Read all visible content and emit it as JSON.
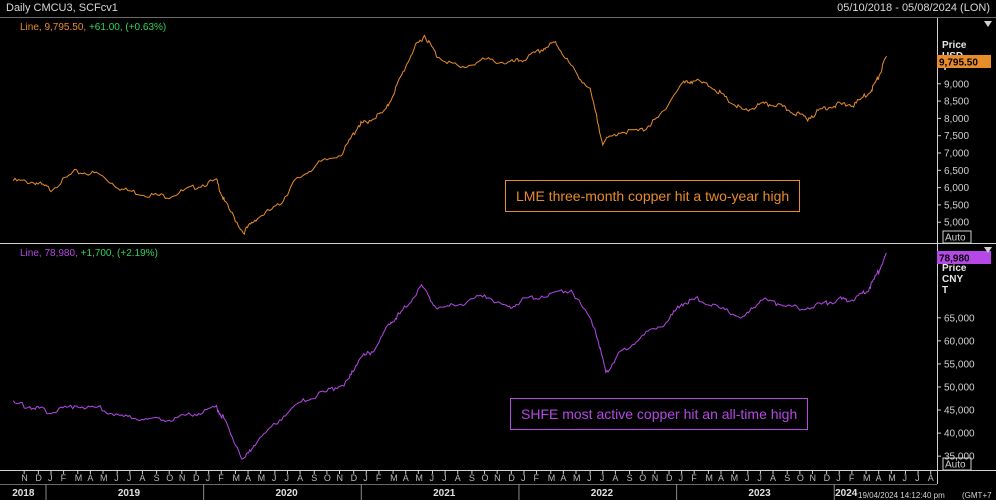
{
  "header": {
    "title": "Daily CMCU3, SCFcv1",
    "date_range": "05/10/2018 - 05/08/2024 (LON)",
    "timestamp": "19/04/2024 14:12:40 pm",
    "timezone": "(GMT+7"
  },
  "colors": {
    "lme": "#e88b2a",
    "shfe": "#b548e6",
    "change": "#2fd35a",
    "bg": "#000000"
  },
  "chart_data": [
    {
      "type": "line",
      "name": "LME",
      "legend": {
        "label": "Line,",
        "last": "9,795.50,",
        "change": "+61.00, (+0.63%)"
      },
      "annotation": "LME three-month copper hit a two-year high",
      "axis_title": [
        "Price",
        "USD",
        "T"
      ],
      "ylim": [
        4400,
        10900
      ],
      "yticks": [
        5000,
        5500,
        6000,
        6500,
        7000,
        7500,
        8000,
        8500,
        9000
      ],
      "ytick_labels": [
        "5,000",
        "5,500",
        "6,000",
        "6,500",
        "7,000",
        "7,500",
        "8,000",
        "8,500",
        "9,000"
      ],
      "last_value_label": "9,795.50",
      "auto_label": "Auto",
      "points": [
        [
          2018.76,
          6200
        ],
        [
          2018.9,
          6150
        ],
        [
          2019.0,
          5950
        ],
        [
          2019.15,
          6450
        ],
        [
          2019.3,
          6400
        ],
        [
          2019.45,
          5950
        ],
        [
          2019.6,
          5800
        ],
        [
          2019.75,
          5750
        ],
        [
          2019.9,
          6000
        ],
        [
          2020.05,
          6200
        ],
        [
          2020.1,
          5600
        ],
        [
          2020.22,
          4700
        ],
        [
          2020.3,
          5100
        ],
        [
          2020.45,
          5500
        ],
        [
          2020.55,
          6200
        ],
        [
          2020.7,
          6700
        ],
        [
          2020.85,
          7000
        ],
        [
          2020.95,
          7800
        ],
        [
          2021.0,
          7900
        ],
        [
          2021.12,
          8200
        ],
        [
          2021.2,
          9000
        ],
        [
          2021.3,
          10000
        ],
        [
          2021.37,
          10400
        ],
        [
          2021.45,
          9800
        ],
        [
          2021.6,
          9450
        ],
        [
          2021.75,
          9700
        ],
        [
          2021.9,
          9600
        ],
        [
          2022.0,
          9700
        ],
        [
          2022.12,
          10000
        ],
        [
          2022.2,
          10200
        ],
        [
          2022.3,
          9500
        ],
        [
          2022.42,
          8800
        ],
        [
          2022.5,
          7300
        ],
        [
          2022.6,
          7600
        ],
        [
          2022.75,
          7650
        ],
        [
          2022.85,
          8000
        ],
        [
          2023.0,
          9000
        ],
        [
          2023.08,
          9100
        ],
        [
          2023.2,
          8900
        ],
        [
          2023.3,
          8500
        ],
        [
          2023.4,
          8200
        ],
        [
          2023.5,
          8400
        ],
        [
          2023.6,
          8400
        ],
        [
          2023.7,
          8200
        ],
        [
          2023.8,
          8000
        ],
        [
          2023.9,
          8300
        ],
        [
          2024.0,
          8400
        ],
        [
          2024.1,
          8400
        ],
        [
          2024.2,
          8800
        ],
        [
          2024.25,
          9200
        ],
        [
          2024.3,
          9795.5
        ]
      ]
    },
    {
      "type": "line",
      "name": "SHFE",
      "legend": {
        "label": "Line,",
        "last": "78,980,",
        "change": "+1,700, (+2.19%)"
      },
      "annotation": "SHFE most active copper hit an all-time high",
      "axis_title": [
        "Price",
        "CNY",
        "T"
      ],
      "ylim": [
        32000,
        81000
      ],
      "yticks": [
        35000,
        40000,
        45000,
        50000,
        55000,
        60000,
        65000
      ],
      "ytick_labels": [
        "35,000",
        "40,000",
        "45,000",
        "50,000",
        "55,000",
        "60,000",
        "65,000"
      ],
      "last_value_label": "78,980",
      "auto_label": "Auto",
      "points": [
        [
          2018.76,
          46500
        ],
        [
          2018.9,
          45500
        ],
        [
          2019.0,
          44500
        ],
        [
          2019.15,
          46000
        ],
        [
          2019.3,
          45500
        ],
        [
          2019.45,
          43500
        ],
        [
          2019.6,
          43000
        ],
        [
          2019.75,
          43000
        ],
        [
          2019.9,
          44000
        ],
        [
          2020.05,
          45500
        ],
        [
          2020.1,
          43000
        ],
        [
          2020.22,
          34000
        ],
        [
          2020.3,
          38000
        ],
        [
          2020.45,
          43000
        ],
        [
          2020.6,
          47000
        ],
        [
          2020.75,
          49000
        ],
        [
          2020.88,
          51000
        ],
        [
          2020.95,
          56000
        ],
        [
          2021.05,
          58000
        ],
        [
          2021.15,
          64000
        ],
        [
          2021.22,
          66000
        ],
        [
          2021.35,
          72000
        ],
        [
          2021.45,
          67000
        ],
        [
          2021.6,
          68000
        ],
        [
          2021.75,
          70000
        ],
        [
          2021.9,
          67000
        ],
        [
          2022.0,
          69000
        ],
        [
          2022.15,
          70000
        ],
        [
          2022.3,
          71000
        ],
        [
          2022.45,
          63000
        ],
        [
          2022.52,
          53000
        ],
        [
          2022.6,
          57000
        ],
        [
          2022.75,
          61000
        ],
        [
          2022.9,
          64000
        ],
        [
          2023.0,
          68000
        ],
        [
          2023.1,
          69000
        ],
        [
          2023.25,
          67000
        ],
        [
          2023.4,
          65000
        ],
        [
          2023.5,
          69000
        ],
        [
          2023.62,
          68000
        ],
        [
          2023.75,
          67000
        ],
        [
          2023.9,
          68000
        ],
        [
          2024.0,
          69000
        ],
        [
          2024.1,
          69000
        ],
        [
          2024.18,
          71000
        ],
        [
          2024.25,
          75000
        ],
        [
          2024.3,
          78980
        ]
      ]
    }
  ],
  "x_axis": {
    "months": [
      {
        "t": 2018.83,
        "l": "N"
      },
      {
        "t": 2018.92,
        "l": "D"
      },
      {
        "t": 2019.0,
        "l": "J"
      },
      {
        "t": 2019.08,
        "l": "F"
      },
      {
        "t": 2019.17,
        "l": "M"
      },
      {
        "t": 2019.25,
        "l": "A"
      },
      {
        "t": 2019.33,
        "l": "M"
      },
      {
        "t": 2019.42,
        "l": "J"
      },
      {
        "t": 2019.5,
        "l": "J"
      },
      {
        "t": 2019.58,
        "l": "A"
      },
      {
        "t": 2019.67,
        "l": "S"
      },
      {
        "t": 2019.75,
        "l": "O"
      },
      {
        "t": 2019.83,
        "l": "N"
      },
      {
        "t": 2019.92,
        "l": "D"
      },
      {
        "t": 2020.0,
        "l": "J"
      },
      {
        "t": 2020.08,
        "l": "F"
      },
      {
        "t": 2020.17,
        "l": "M"
      },
      {
        "t": 2020.25,
        "l": "A"
      },
      {
        "t": 2020.33,
        "l": "M"
      },
      {
        "t": 2020.42,
        "l": "J"
      },
      {
        "t": 2020.5,
        "l": "J"
      },
      {
        "t": 2020.58,
        "l": "A"
      },
      {
        "t": 2020.67,
        "l": "S"
      },
      {
        "t": 2020.75,
        "l": "O"
      },
      {
        "t": 2020.83,
        "l": "N"
      },
      {
        "t": 2020.92,
        "l": "D"
      },
      {
        "t": 2021.0,
        "l": "J"
      },
      {
        "t": 2021.08,
        "l": "F"
      },
      {
        "t": 2021.17,
        "l": "M"
      },
      {
        "t": 2021.25,
        "l": "A"
      },
      {
        "t": 2021.33,
        "l": "M"
      },
      {
        "t": 2021.42,
        "l": "J"
      },
      {
        "t": 2021.5,
        "l": "J"
      },
      {
        "t": 2021.58,
        "l": "A"
      },
      {
        "t": 2021.67,
        "l": "S"
      },
      {
        "t": 2021.75,
        "l": "O"
      },
      {
        "t": 2021.83,
        "l": "N"
      },
      {
        "t": 2021.92,
        "l": "D"
      },
      {
        "t": 2022.0,
        "l": "J"
      },
      {
        "t": 2022.08,
        "l": "F"
      },
      {
        "t": 2022.17,
        "l": "M"
      },
      {
        "t": 2022.25,
        "l": "A"
      },
      {
        "t": 2022.33,
        "l": "M"
      },
      {
        "t": 2022.42,
        "l": "J"
      },
      {
        "t": 2022.5,
        "l": "J"
      },
      {
        "t": 2022.58,
        "l": "A"
      },
      {
        "t": 2022.67,
        "l": "S"
      },
      {
        "t": 2022.75,
        "l": "O"
      },
      {
        "t": 2022.83,
        "l": "N"
      },
      {
        "t": 2022.92,
        "l": "D"
      },
      {
        "t": 2023.0,
        "l": "J"
      },
      {
        "t": 2023.08,
        "l": "F"
      },
      {
        "t": 2023.17,
        "l": "M"
      },
      {
        "t": 2023.25,
        "l": "A"
      },
      {
        "t": 2023.33,
        "l": "M"
      },
      {
        "t": 2023.42,
        "l": "J"
      },
      {
        "t": 2023.5,
        "l": "J"
      },
      {
        "t": 2023.58,
        "l": "A"
      },
      {
        "t": 2023.67,
        "l": "S"
      },
      {
        "t": 2023.75,
        "l": "O"
      },
      {
        "t": 2023.83,
        "l": "N"
      },
      {
        "t": 2023.92,
        "l": "D"
      },
      {
        "t": 2024.0,
        "l": "J"
      },
      {
        "t": 2024.08,
        "l": "F"
      },
      {
        "t": 2024.17,
        "l": "M"
      },
      {
        "t": 2024.25,
        "l": "A"
      },
      {
        "t": 2024.33,
        "l": "M"
      },
      {
        "t": 2024.42,
        "l": "J"
      },
      {
        "t": 2024.5,
        "l": "J"
      },
      {
        "t": 2024.58,
        "l": "A"
      }
    ],
    "years": [
      {
        "t": 2018.83,
        "l": "2018"
      },
      {
        "t": 2019.5,
        "l": "2019"
      },
      {
        "t": 2020.5,
        "l": "2020"
      },
      {
        "t": 2021.5,
        "l": "2021"
      },
      {
        "t": 2022.5,
        "l": "2022"
      },
      {
        "t": 2023.5,
        "l": "2023"
      },
      {
        "t": 2024.05,
        "l": "2024"
      }
    ],
    "year_boundaries": [
      2019.0,
      2020.0,
      2021.0,
      2022.0,
      2023.0,
      2024.0
    ]
  }
}
